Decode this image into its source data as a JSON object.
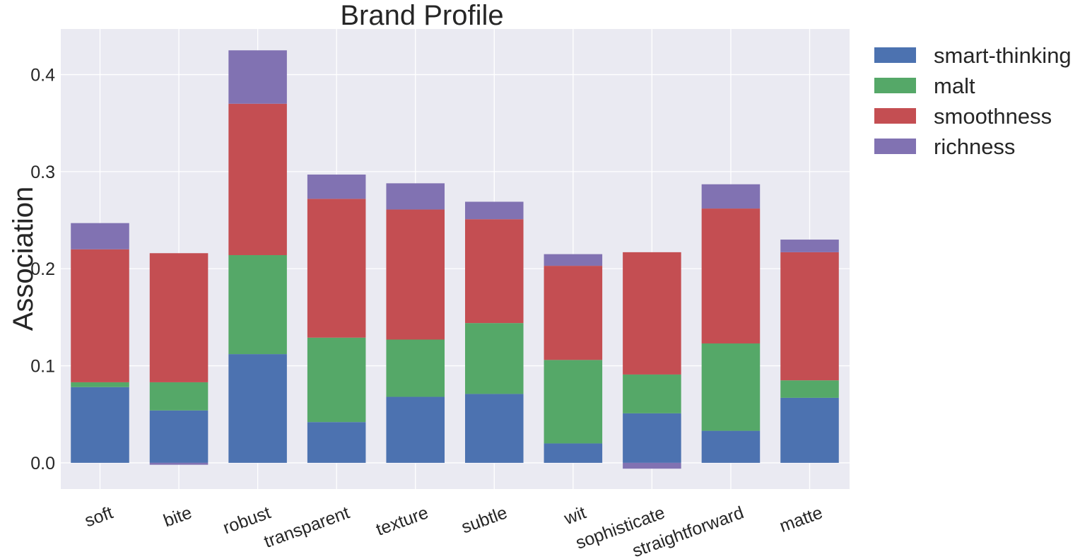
{
  "chart_data": {
    "type": "bar",
    "stacked": true,
    "title": "Brand Profile",
    "xlabel": "",
    "ylabel": "Association",
    "ylim": [
      -0.027,
      0.447
    ],
    "yticks": [
      0.0,
      0.1,
      0.2,
      0.3,
      0.4
    ],
    "ytick_labels": [
      "0.0",
      "0.1",
      "0.2",
      "0.3",
      "0.4"
    ],
    "grid": true,
    "legend_position": "outside-top-right",
    "categories": [
      "soft",
      "bite",
      "robust",
      "transparent",
      "texture",
      "subtle",
      "wit",
      "sophisticate",
      "straightforward",
      "matte"
    ],
    "series": [
      {
        "name": "smart-thinking",
        "color": "#4c72b0",
        "values": [
          0.078,
          0.054,
          0.112,
          0.042,
          0.068,
          0.071,
          0.02,
          0.051,
          0.033,
          0.067
        ]
      },
      {
        "name": "malt",
        "color": "#55a868",
        "values": [
          0.005,
          0.029,
          0.102,
          0.087,
          0.059,
          0.073,
          0.086,
          0.04,
          0.09,
          0.018
        ]
      },
      {
        "name": "smoothness",
        "color": "#c44e52",
        "values": [
          0.137,
          0.133,
          0.156,
          0.143,
          0.134,
          0.107,
          0.097,
          0.126,
          0.139,
          0.132
        ]
      },
      {
        "name": "richness",
        "color": "#8172b2",
        "values": [
          0.027,
          -0.002,
          0.055,
          0.025,
          0.027,
          0.018,
          0.012,
          -0.006,
          0.025,
          0.013
        ]
      }
    ]
  }
}
